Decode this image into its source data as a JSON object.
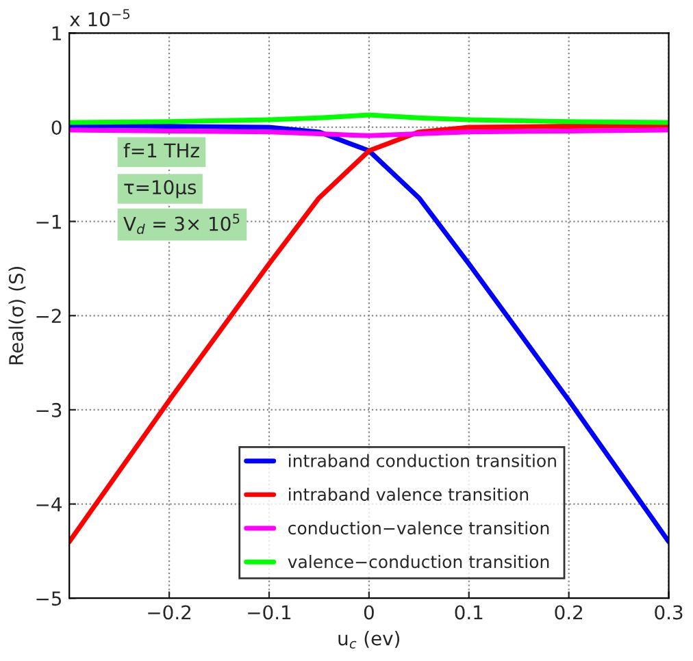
{
  "chart_data": {
    "type": "line",
    "xlabel": "u$_{c}$ (ev)",
    "ylabel": "Real(σ) (S)",
    "x": [
      -0.3,
      -0.2,
      -0.1,
      -0.05,
      0,
      0.05,
      0.1,
      0.2,
      0.3
    ],
    "series": [
      {
        "name": "intraband conduction transition",
        "color": "#0000ff",
        "values": [
          0.02,
          0.01,
          0,
          -0.05,
          -0.25,
          -0.75,
          -1.45,
          -2.9,
          -4.4
        ]
      },
      {
        "name": "intraband valence transition",
        "color": "#ff0000",
        "values": [
          -4.4,
          -2.9,
          -1.45,
          -0.75,
          -0.25,
          -0.05,
          0,
          0.01,
          0.02
        ]
      },
      {
        "name": "conduction−valence transition",
        "color": "#ff00ff",
        "values": [
          -0.03,
          -0.04,
          -0.05,
          -0.07,
          -0.09,
          -0.07,
          -0.05,
          -0.04,
          -0.03
        ]
      },
      {
        "name": "valence−conduction transition",
        "color": "#00ff00",
        "values": [
          0.05,
          0.06,
          0.08,
          0.1,
          0.13,
          0.1,
          0.08,
          0.06,
          0.05
        ]
      }
    ],
    "xlim": [
      -0.3,
      0.3
    ],
    "xticks": [
      -0.2,
      -0.1,
      0,
      0.1,
      0.2,
      0.3
    ],
    "ylim": [
      -5,
      1
    ],
    "yticks": [
      -5,
      -4,
      -3,
      -2,
      -1,
      0,
      1
    ],
    "annotations": [
      "x 10$^{−5}$",
      "f=1 THz",
      "τ=10μs",
      "V$_{d}$ = 3× 10$^{5}$"
    ],
    "grid": true,
    "legend": "bottom right",
    "marker": "none",
    "line_style": "solid"
  }
}
